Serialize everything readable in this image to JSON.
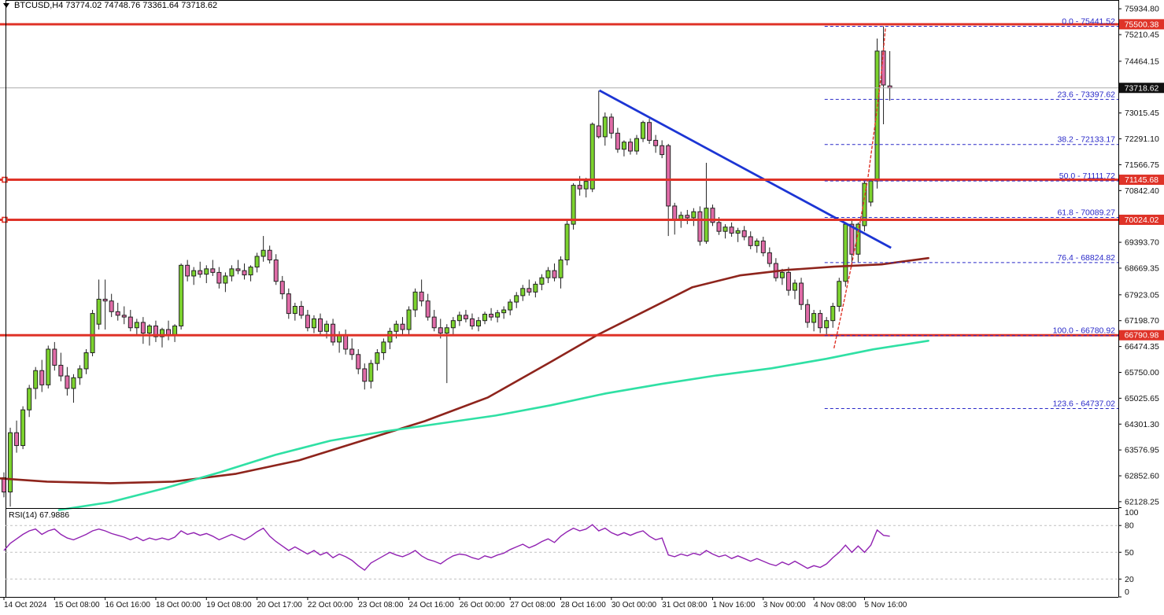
{
  "info_bar": {
    "symbol": "BTCUSD",
    "timeframe": "H4",
    "open": "73774.02",
    "high": "74748.76",
    "low": "73361.64",
    "close": "73718.62",
    "text": "BTCUSD,H4   73774.02 74748.76 73361.64 73718.62"
  },
  "colors": {
    "bull": "#7CD32E",
    "bear": "#E06CA8",
    "candle_outline": "#222222",
    "line_red": "#DF3328",
    "fib_blue": "#2929C8",
    "trend_blue": "#1C35D4",
    "ma_dark_red": "#8E241C",
    "ma_turquoise": "#2FE0A4",
    "rsi_purple": "#9122B2",
    "badge_black": "#111111",
    "grid_gray": "#C0C0C0",
    "current_price_gray": "#ABABAB"
  },
  "chart_data": {
    "type": "candlestick",
    "title": "BTCUSD H4 with Fibonacci retracement, trendline, moving averages and RSI",
    "ylim": [
      61950,
      75960
    ],
    "grid": false,
    "x_axis_labels": [
      "14 Oct 2024",
      "15 Oct 08:00",
      "16 Oct 16:00",
      "18 Oct 00:00",
      "19 Oct 08:00",
      "20 Oct 17:00",
      "22 Oct 00:00",
      "23 Oct 08:00",
      "24 Oct 16:00",
      "26 Oct 00:00",
      "27 Oct 08:00",
      "28 Oct 16:00",
      "30 Oct 00:00",
      "31 Oct 08:00",
      "1 Nov 16:00",
      "3 Nov 00:00",
      "4 Nov 08:00",
      "5 Nov 16:00"
    ],
    "bars_per_x_label": 8,
    "y_axis_labels": [
      "75934.80",
      "75210.45",
      "74464.15",
      "73015.45",
      "72291.10",
      "71566.75",
      "70842.40",
      "69393.70",
      "68669.35",
      "67923.05",
      "67198.70",
      "66474.35",
      "65750.00",
      "65025.65",
      "64301.30",
      "63576.95",
      "62852.60",
      "62128.25"
    ],
    "price_badges": [
      {
        "text": "75500.38",
        "price": 75500.38,
        "bg": "red"
      },
      {
        "text": "73718.62",
        "price": 73718.62,
        "bg": "black"
      },
      {
        "text": "71145.68",
        "price": 71145.68,
        "bg": "red"
      },
      {
        "text": "70024.02",
        "price": 70024.02,
        "bg": "red"
      },
      {
        "text": "66790.98",
        "price": 66790.98,
        "bg": "red"
      }
    ],
    "bars": [
      [
        62800,
        62950,
        62250,
        62400
      ],
      [
        62400,
        64200,
        61990,
        64060
      ],
      [
        64060,
        64400,
        63500,
        63700
      ],
      [
        63700,
        64800,
        63600,
        64700
      ],
      [
        64700,
        65400,
        64500,
        65300
      ],
      [
        65300,
        65900,
        65000,
        65800
      ],
      [
        65800,
        66100,
        65200,
        65400
      ],
      [
        65400,
        66500,
        65300,
        66400
      ],
      [
        66400,
        66600,
        65800,
        65950
      ],
      [
        65950,
        66300,
        65500,
        65650
      ],
      [
        65650,
        65900,
        65100,
        65300
      ],
      [
        65300,
        65700,
        64900,
        65600
      ],
      [
        65600,
        65950,
        65400,
        65850
      ],
      [
        65850,
        66400,
        65700,
        66300
      ],
      [
        66300,
        67500,
        66200,
        67400
      ],
      [
        67100,
        68350,
        66950,
        67800
      ],
      [
        67800,
        68350,
        66950,
        67750
      ],
      [
        67750,
        67950,
        67300,
        67450
      ],
      [
        67450,
        67700,
        67200,
        67350
      ],
      [
        67350,
        67600,
        67100,
        67300
      ],
      [
        67300,
        67500,
        66900,
        67000
      ],
      [
        67000,
        67250,
        66800,
        67150
      ],
      [
        67150,
        67300,
        66550,
        66850
      ],
      [
        66850,
        67100,
        66500,
        67050
      ],
      [
        67050,
        67200,
        66600,
        66750
      ],
      [
        66750,
        67000,
        66450,
        66950
      ],
      [
        66950,
        67200,
        66650,
        66800
      ],
      [
        66800,
        67100,
        66600,
        67050
      ],
      [
        67050,
        68800,
        66950,
        68750
      ],
      [
        68750,
        68900,
        68300,
        68450
      ],
      [
        68450,
        68700,
        68200,
        68600
      ],
      [
        68600,
        68850,
        68400,
        68500
      ],
      [
        68500,
        68750,
        68250,
        68650
      ],
      [
        68650,
        68900,
        68450,
        68550
      ],
      [
        68550,
        68700,
        68100,
        68250
      ],
      [
        68250,
        68550,
        68000,
        68450
      ],
      [
        68450,
        68750,
        68300,
        68650
      ],
      [
        68650,
        68900,
        68500,
        68600
      ],
      [
        68600,
        68800,
        68350,
        68480
      ],
      [
        68480,
        68750,
        68300,
        68700
      ],
      [
        68700,
        69100,
        68550,
        69000
      ],
      [
        69000,
        69570,
        68850,
        69170
      ],
      [
        69170,
        69300,
        68800,
        68900
      ],
      [
        68900,
        69060,
        68200,
        68300
      ],
      [
        68300,
        68450,
        67800,
        67950
      ],
      [
        67950,
        68100,
        67250,
        67400
      ],
      [
        67400,
        67700,
        67200,
        67600
      ],
      [
        67600,
        67750,
        67250,
        67350
      ],
      [
        67350,
        67500,
        66900,
        67000
      ],
      [
        67000,
        67350,
        66850,
        67250
      ],
      [
        67250,
        67400,
        66800,
        66900
      ],
      [
        66900,
        67200,
        66700,
        67100
      ],
      [
        67100,
        67250,
        66500,
        66600
      ],
      [
        66600,
        66900,
        66300,
        66800
      ],
      [
        66800,
        66950,
        66250,
        66400
      ],
      [
        66400,
        66700,
        66100,
        66250
      ],
      [
        66250,
        66400,
        65700,
        65850
      ],
      [
        65850,
        66000,
        65270,
        65500
      ],
      [
        65500,
        66100,
        65300,
        66000
      ],
      [
        66000,
        66400,
        65800,
        66300
      ],
      [
        66300,
        66700,
        66100,
        66600
      ],
      [
        66600,
        67000,
        66400,
        66900
      ],
      [
        66900,
        67200,
        66700,
        67100
      ],
      [
        67100,
        67300,
        66800,
        66950
      ],
      [
        66950,
        67600,
        66800,
        67500
      ],
      [
        67500,
        68100,
        67300,
        68000
      ],
      [
        68000,
        68350,
        67600,
        67750
      ],
      [
        67750,
        67950,
        67200,
        67300
      ],
      [
        67300,
        67500,
        66900,
        67000
      ],
      [
        67000,
        67250,
        66700,
        66850
      ],
      [
        66850,
        67100,
        65450,
        67000
      ],
      [
        67000,
        67300,
        66800,
        67200
      ],
      [
        67200,
        67450,
        67050,
        67350
      ],
      [
        67350,
        67500,
        67150,
        67250
      ],
      [
        67250,
        67400,
        66950,
        67050
      ],
      [
        67050,
        67300,
        66900,
        67200
      ],
      [
        67200,
        67450,
        67100,
        67380
      ],
      [
        67380,
        67550,
        67200,
        67300
      ],
      [
        67300,
        67500,
        67150,
        67420
      ],
      [
        67420,
        67600,
        67250,
        67500
      ],
      [
        67500,
        67800,
        67350,
        67720
      ],
      [
        67720,
        68000,
        67550,
        67900
      ],
      [
        67900,
        68200,
        67750,
        68100
      ],
      [
        68100,
        68350,
        67900,
        68000
      ],
      [
        68000,
        68300,
        67850,
        68220
      ],
      [
        68220,
        68500,
        68050,
        68400
      ],
      [
        68400,
        68700,
        68250,
        68600
      ],
      [
        68600,
        68800,
        68300,
        68400
      ],
      [
        68400,
        69000,
        68100,
        68900
      ],
      [
        68900,
        70000,
        68750,
        69900
      ],
      [
        69900,
        71050,
        69750,
        70990
      ],
      [
        70990,
        71250,
        70700,
        70890
      ],
      [
        70890,
        71200,
        70650,
        71100
      ],
      [
        70890,
        72750,
        70800,
        72700
      ],
      [
        72655,
        73640,
        72300,
        72350
      ],
      [
        72350,
        73030,
        72100,
        72900
      ],
      [
        72900,
        73000,
        72300,
        72450
      ],
      [
        72450,
        72600,
        71900,
        72000
      ],
      [
        72000,
        72250,
        71800,
        72200
      ],
      [
        72200,
        72300,
        71850,
        71950
      ],
      [
        71950,
        72400,
        71850,
        72300
      ],
      [
        72300,
        72800,
        72200,
        72750
      ],
      [
        72750,
        72850,
        72150,
        72250
      ],
      [
        72250,
        72400,
        71900,
        72100
      ],
      [
        72100,
        72250,
        71750,
        71850
      ],
      [
        72100,
        72150,
        69570,
        70410
      ],
      [
        70410,
        70500,
        69610,
        70030
      ],
      [
        70030,
        70250,
        69800,
        70150
      ],
      [
        70150,
        70300,
        69900,
        70080
      ],
      [
        70080,
        70350,
        69850,
        70250
      ],
      [
        70250,
        70400,
        69300,
        69420
      ],
      [
        69420,
        71620,
        69350,
        70350
      ],
      [
        70350,
        70450,
        69850,
        69950
      ],
      [
        69950,
        70100,
        69600,
        69700
      ],
      [
        69700,
        69900,
        69500,
        69820
      ],
      [
        69820,
        69950,
        69550,
        69650
      ],
      [
        69650,
        69800,
        69400,
        69720
      ],
      [
        69720,
        69850,
        69450,
        69550
      ],
      [
        69550,
        69700,
        69200,
        69300
      ],
      [
        69300,
        69500,
        69100,
        69430
      ],
      [
        69430,
        69550,
        69000,
        69100
      ],
      [
        69100,
        69250,
        68700,
        68800
      ],
      [
        68800,
        68950,
        68300,
        68400
      ],
      [
        68400,
        68650,
        68200,
        68550
      ],
      [
        68550,
        68700,
        67900,
        68050
      ],
      [
        68050,
        68350,
        67800,
        68250
      ],
      [
        68250,
        68400,
        67500,
        67650
      ],
      [
        67650,
        67800,
        67000,
        67150
      ],
      [
        67150,
        67500,
        66900,
        67400
      ],
      [
        67400,
        67500,
        66850,
        67000
      ],
      [
        67000,
        67300,
        66781,
        67200
      ],
      [
        67200,
        67700,
        67000,
        67600
      ],
      [
        67600,
        68400,
        67450,
        68300
      ],
      [
        68300,
        69950,
        68150,
        69900
      ],
      [
        69900,
        70050,
        68700,
        69060
      ],
      [
        69060,
        69950,
        68840,
        69900
      ],
      [
        69860,
        71100,
        69700,
        71046
      ],
      [
        70520,
        71150,
        70400,
        71112
      ],
      [
        71113,
        75100,
        70900,
        74750
      ],
      [
        74750,
        75441.52,
        72700,
        73800
      ],
      [
        73774.02,
        74748.76,
        73361.64,
        73718.62
      ]
    ],
    "overlays": {
      "horizontal_lines": [
        {
          "price": 75500.38,
          "handles": false
        },
        {
          "price": 71145.68,
          "handles": true
        },
        {
          "price": 70024.02,
          "handles": true
        },
        {
          "price": 66790.98,
          "handles": false
        }
      ],
      "fibonacci": {
        "start_bar": 129.7,
        "levels": [
          {
            "pct": "0.0",
            "price": 75441.52,
            "label": "0.0 - 75441.52"
          },
          {
            "pct": "23.6",
            "price": 73397.62,
            "label": "23.6 - 73397.62"
          },
          {
            "pct": "38.2",
            "price": 72133.17,
            "label": "38.2 - 72133.17"
          },
          {
            "pct": "50.0",
            "price": 71111.72,
            "label": "50.0 - 71111.72"
          },
          {
            "pct": "61.8",
            "price": 70089.27,
            "label": "61.8 - 70089.27"
          },
          {
            "pct": "76.4",
            "price": 68824.82,
            "label": "76.4 - 68824.82"
          },
          {
            "pct": "100.0",
            "price": 66780.92,
            "label": "100.0 - 66780.92"
          },
          {
            "pct": "123.6",
            "price": 64737.02,
            "label": "123.6 - 64737.02"
          }
        ]
      },
      "trendline": {
        "from": [
          94.1,
          73648
        ],
        "to": [
          140.2,
          69238
        ]
      },
      "projection_curve": {
        "style": "dotted",
        "points": [
          [
            131.2,
            66437
          ],
          [
            132.6,
            67600
          ],
          [
            134,
            68800
          ],
          [
            135.3,
            69950
          ],
          [
            136.5,
            71150
          ],
          [
            137.6,
            72600
          ],
          [
            138.6,
            74000
          ],
          [
            139.3,
            75390
          ]
        ]
      },
      "ma_dark_red": {
        "points": [
          [
            -0.6,
            62780
          ],
          [
            6.8,
            62690
          ],
          [
            16.8,
            62645
          ],
          [
            26.7,
            62690
          ],
          [
            36.7,
            62910
          ],
          [
            46.6,
            63285
          ],
          [
            56.6,
            63835
          ],
          [
            66.5,
            64385
          ],
          [
            76.5,
            65050
          ],
          [
            86.4,
            66040
          ],
          [
            93.9,
            66810
          ],
          [
            101.4,
            67475
          ],
          [
            108.8,
            68135
          ],
          [
            116.3,
            68465
          ],
          [
            123.8,
            68620
          ],
          [
            131.2,
            68710
          ],
          [
            138.7,
            68775
          ],
          [
            146.1,
            68950
          ]
        ]
      },
      "ma_turquoise": {
        "points": [
          [
            8.7,
            61895
          ],
          [
            16.8,
            62115
          ],
          [
            25.5,
            62510
          ],
          [
            34.2,
            62955
          ],
          [
            42.9,
            63440
          ],
          [
            51.6,
            63835
          ],
          [
            60.3,
            64100
          ],
          [
            69,
            64320
          ],
          [
            77.7,
            64540
          ],
          [
            86.4,
            64830
          ],
          [
            95.1,
            65160
          ],
          [
            103.9,
            65425
          ],
          [
            112.6,
            65665
          ],
          [
            121.3,
            65865
          ],
          [
            130,
            66130
          ],
          [
            137.4,
            66395
          ],
          [
            146.1,
            66635
          ]
        ]
      },
      "current_price": 73718.62
    },
    "sub_chart": {
      "type": "line",
      "name": "RSI(14)",
      "value_label": "67.9886",
      "label_text": "RSI(14) 67.9886",
      "ylim": [
        0,
        100
      ],
      "gridlines": [
        80,
        50,
        20
      ],
      "y_axis_labels": [
        "100",
        "80",
        "50",
        "20",
        "0"
      ],
      "values": [
        52,
        60,
        65,
        70,
        74,
        76,
        70,
        74,
        76,
        70,
        66,
        64,
        67,
        70,
        74,
        76,
        74,
        71,
        69,
        67,
        64,
        67,
        63,
        66,
        64,
        66,
        64,
        67,
        74,
        70,
        72,
        69,
        71,
        68,
        64,
        67,
        70,
        67,
        64,
        68,
        73,
        77,
        68,
        62,
        57,
        52,
        56,
        52,
        48,
        52,
        47,
        50,
        44,
        48,
        45,
        41,
        35,
        30,
        38,
        42,
        46,
        50,
        47,
        45,
        48,
        52,
        46,
        42,
        40,
        37,
        42,
        46,
        48,
        47,
        44,
        42,
        46,
        44,
        47,
        49,
        53,
        56,
        59,
        55,
        58,
        62,
        65,
        61,
        68,
        73,
        77,
        74,
        76,
        81,
        74,
        77,
        72,
        69,
        72,
        69,
        72,
        74,
        68,
        64,
        66,
        47,
        45,
        48,
        46,
        49,
        47,
        52,
        48,
        45,
        47,
        43,
        46,
        43,
        40,
        43,
        40,
        37,
        35,
        39,
        36,
        40,
        36,
        32,
        35,
        33,
        37,
        44,
        50,
        58,
        50,
        57,
        50,
        58,
        75,
        69,
        68
      ]
    }
  }
}
